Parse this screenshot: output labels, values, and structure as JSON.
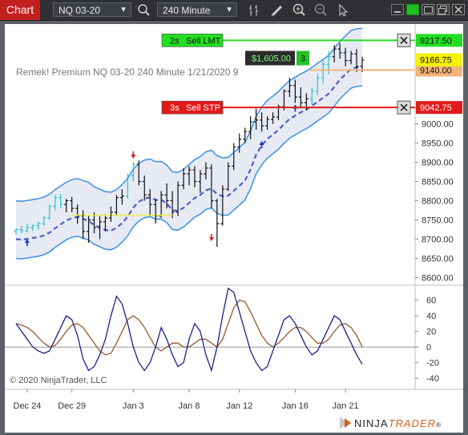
{
  "toolbar": {
    "title": "Chart",
    "instrument": "NQ 03-20",
    "interval": "240 Minute"
  },
  "chart_data": {
    "type": "candlestick",
    "info_line": "Remek!  Premium  NQ 03-20  240 Minute  1/21/2020 9",
    "copyright": "© 2020 NinjaTrader, LLC",
    "brand": {
      "prefix": "NINJA",
      "suffix": "TRADER",
      "mark": "®"
    },
    "price_axis": {
      "ticks": [
        "9000.00",
        "8950.00",
        "8900.00",
        "8850.00",
        "8800.00",
        "8750.00",
        "8700.00",
        "8650.00",
        "8600.00"
      ],
      "price_min": 8580,
      "price_max": 9260
    },
    "oscillator_axis": {
      "ticks": [
        "60",
        "40",
        "20",
        "0",
        "-20",
        "-40"
      ],
      "min": -50,
      "max": 75
    },
    "time_axis": {
      "ticks": [
        "Dec 24",
        "Dec 29",
        "Jan 3",
        "Jan 8",
        "Jan 12",
        "Jan 16",
        "Jan 21"
      ]
    },
    "orders": {
      "sell_limit": {
        "label": "Sell LMT",
        "qty": "2s",
        "price": "9217.50",
        "price_value": 9217.5,
        "color": "#22dd22"
      },
      "sell_stop": {
        "label": "Sell STP",
        "qty": "3s",
        "price": "9042.75",
        "price_value": 9042.75,
        "color": "#e11b1b"
      }
    },
    "position": {
      "pnl": "$1,605.00",
      "qty": "3",
      "avg_price": "9140.00",
      "price_value": 9140.0,
      "color": "#f1b47b"
    },
    "last_price": {
      "price": "9166.75",
      "price_value": 9166.75,
      "color": "#f5f100"
    },
    "candles": [
      [
        8720,
        8728,
        8712,
        8725
      ],
      [
        8725,
        8735,
        8715,
        8722
      ],
      [
        8722,
        8740,
        8718,
        8730
      ],
      [
        8730,
        8738,
        8722,
        8735
      ],
      [
        8735,
        8745,
        8725,
        8740
      ],
      [
        8740,
        8760,
        8735,
        8755
      ],
      [
        8755,
        8790,
        8750,
        8785
      ],
      [
        8785,
        8815,
        8775,
        8808
      ],
      [
        8808,
        8818,
        8780,
        8790
      ],
      [
        8790,
        8805,
        8770,
        8800
      ],
      [
        8800,
        8810,
        8770,
        8780
      ],
      [
        8780,
        8790,
        8740,
        8760
      ],
      [
        8760,
        8775,
        8700,
        8720
      ],
      [
        8720,
        8760,
        8690,
        8750
      ],
      [
        8750,
        8770,
        8715,
        8730
      ],
      [
        8730,
        8760,
        8700,
        8745
      ],
      [
        8745,
        8765,
        8720,
        8755
      ],
      [
        8755,
        8785,
        8745,
        8770
      ],
      [
        8770,
        8815,
        8760,
        8808
      ],
      [
        8808,
        8830,
        8790,
        8812
      ],
      [
        8812,
        8870,
        8805,
        8865
      ],
      [
        8865,
        8900,
        8850,
        8895
      ],
      [
        8895,
        8905,
        8840,
        8850
      ],
      [
        8850,
        8865,
        8800,
        8815
      ],
      [
        8815,
        8830,
        8760,
        8790
      ],
      [
        8790,
        8805,
        8740,
        8760
      ],
      [
        8760,
        8825,
        8755,
        8815
      ],
      [
        8815,
        8845,
        8780,
        8800
      ],
      [
        8800,
        8825,
        8755,
        8770
      ],
      [
        8770,
        8850,
        8760,
        8840
      ],
      [
        8840,
        8885,
        8830,
        8870
      ],
      [
        8870,
        8890,
        8840,
        8880
      ],
      [
        8880,
        8890,
        8835,
        8850
      ],
      [
        8850,
        8880,
        8820,
        8870
      ],
      [
        8870,
        8900,
        8855,
        8885
      ],
      [
        8885,
        8895,
        8780,
        8800
      ],
      [
        8800,
        8805,
        8680,
        8740
      ],
      [
        8740,
        8840,
        8735,
        8830
      ],
      [
        8830,
        8900,
        8825,
        8890
      ],
      [
        8890,
        8950,
        8880,
        8940
      ],
      [
        8940,
        8975,
        8925,
        8960
      ],
      [
        8960,
        8990,
        8950,
        8980
      ],
      [
        8980,
        9020,
        8960,
        9005
      ],
      [
        9005,
        9040,
        8985,
        9010
      ],
      [
        9010,
        9030,
        8980,
        8995
      ],
      [
        8995,
        9020,
        8985,
        9012
      ],
      [
        9012,
        9030,
        9000,
        9018
      ],
      [
        9018,
        9050,
        9010,
        9045
      ],
      [
        9045,
        9090,
        9035,
        9085
      ],
      [
        9085,
        9120,
        9070,
        9100
      ],
      [
        9100,
        9115,
        9055,
        9070
      ],
      [
        9070,
        9095,
        9040,
        9055
      ],
      [
        9055,
        9080,
        9035,
        9065
      ],
      [
        9065,
        9095,
        9050,
        9085
      ],
      [
        9085,
        9130,
        9075,
        9120
      ],
      [
        9120,
        9165,
        9105,
        9155
      ],
      [
        9155,
        9190,
        9130,
        9175
      ],
      [
        9175,
        9205,
        9160,
        9195
      ],
      [
        9195,
        9210,
        9170,
        9185
      ],
      [
        9185,
        9198,
        9150,
        9165
      ],
      [
        9165,
        9190,
        9155,
        9182
      ],
      [
        9182,
        9195,
        9135,
        9150
      ],
      [
        9150,
        9175,
        9135,
        9166
      ]
    ],
    "oscillator_fast": [
      30,
      20,
      10,
      0,
      -5,
      -8,
      -5,
      10,
      25,
      40,
      35,
      15,
      -15,
      -30,
      -25,
      -10,
      10,
      40,
      65,
      55,
      30,
      0,
      -20,
      -30,
      -20,
      0,
      25,
      10,
      -10,
      -25,
      -20,
      10,
      30,
      20,
      -10,
      -30,
      0,
      40,
      75,
      70,
      45,
      20,
      -5,
      -20,
      -30,
      -25,
      -5,
      15,
      35,
      40,
      30,
      15,
      0,
      -10,
      -5,
      10,
      25,
      40,
      35,
      20,
      5,
      -10,
      -22
    ],
    "oscillator_slow": [
      30,
      28,
      25,
      20,
      12,
      5,
      0,
      2,
      10,
      20,
      28,
      30,
      25,
      15,
      5,
      -5,
      -10,
      -8,
      5,
      20,
      35,
      40,
      35,
      25,
      12,
      0,
      -5,
      0,
      5,
      5,
      0,
      0,
      5,
      10,
      10,
      5,
      0,
      10,
      30,
      50,
      60,
      58,
      45,
      30,
      15,
      5,
      0,
      5,
      12,
      20,
      25,
      25,
      20,
      12,
      5,
      5,
      10,
      20,
      28,
      30,
      25,
      15,
      0
    ]
  }
}
